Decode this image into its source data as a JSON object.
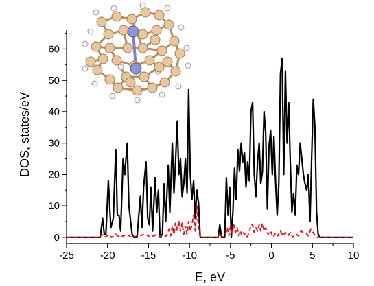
{
  "chart_data": {
    "type": "line",
    "xlabel": "E, eV",
    "ylabel": "DOS, states/eV",
    "xlim": [
      -25,
      10
    ],
    "ylim": [
      -2,
      66
    ],
    "x_ticks": [
      -25,
      -20,
      -15,
      -10,
      -5,
      0,
      5,
      10
    ],
    "y_ticks": [
      0,
      10,
      20,
      30,
      40,
      50,
      60
    ],
    "grid": false,
    "legend": "none",
    "inset": "molecule-ball-and-stick",
    "series": [
      {
        "color": "#000000",
        "style": "solid",
        "points": [
          [
            -25,
            0
          ],
          [
            -20.9,
            0
          ],
          [
            -20.6,
            6
          ],
          [
            -20.4,
            1
          ],
          [
            -20.2,
            1
          ],
          [
            -19.9,
            18
          ],
          [
            -19.6,
            3
          ],
          [
            -19.3,
            6
          ],
          [
            -19.0,
            28
          ],
          [
            -18.8,
            7
          ],
          [
            -18.6,
            7
          ],
          [
            -18.4,
            2
          ],
          [
            -18.1,
            25
          ],
          [
            -17.9,
            20
          ],
          [
            -17.6,
            30
          ],
          [
            -17.4,
            10
          ],
          [
            -17.0,
            1
          ],
          [
            -16.8,
            0
          ],
          [
            -16.4,
            0
          ],
          [
            -16.0,
            13
          ],
          [
            -15.8,
            3
          ],
          [
            -15.6,
            16
          ],
          [
            -15.3,
            24
          ],
          [
            -15.1,
            6
          ],
          [
            -14.9,
            4
          ],
          [
            -14.7,
            16
          ],
          [
            -14.5,
            2
          ],
          [
            -14.2,
            19
          ],
          [
            -14.0,
            8
          ],
          [
            -13.8,
            15
          ],
          [
            -13.6,
            0
          ],
          [
            -13.3,
            1
          ],
          [
            -13.1,
            17
          ],
          [
            -12.9,
            5
          ],
          [
            -12.6,
            23
          ],
          [
            -12.4,
            8
          ],
          [
            -12.1,
            30
          ],
          [
            -11.9,
            14
          ],
          [
            -11.7,
            24
          ],
          [
            -11.5,
            37
          ],
          [
            -11.3,
            20
          ],
          [
            -11.1,
            25
          ],
          [
            -10.9,
            13
          ],
          [
            -10.7,
            17
          ],
          [
            -10.5,
            25
          ],
          [
            -10.3,
            14
          ],
          [
            -10.1,
            47
          ],
          [
            -9.9,
            20
          ],
          [
            -9.7,
            12
          ],
          [
            -9.5,
            18
          ],
          [
            -9.3,
            6
          ],
          [
            -9.1,
            15
          ],
          [
            -8.9,
            11
          ],
          [
            -8.7,
            0
          ],
          [
            -6.5,
            0
          ],
          [
            -6.3,
            4
          ],
          [
            -6.1,
            0
          ],
          [
            -5.7,
            0
          ],
          [
            -5.5,
            19
          ],
          [
            -5.3,
            7
          ],
          [
            -5.1,
            16
          ],
          [
            -4.9,
            0
          ],
          [
            -4.7,
            8
          ],
          [
            -4.5,
            22
          ],
          [
            -4.3,
            12
          ],
          [
            -4.1,
            28
          ],
          [
            -3.9,
            21
          ],
          [
            -3.7,
            30
          ],
          [
            -3.5,
            24
          ],
          [
            -3.3,
            27
          ],
          [
            -3.1,
            16
          ],
          [
            -2.9,
            24
          ],
          [
            -2.7,
            18
          ],
          [
            -2.5,
            40
          ],
          [
            -2.3,
            43
          ],
          [
            -2.1,
            20
          ],
          [
            -1.9,
            13
          ],
          [
            -1.7,
            24
          ],
          [
            -1.5,
            30
          ],
          [
            -1.3,
            17
          ],
          [
            -1.1,
            21
          ],
          [
            -0.9,
            40
          ],
          [
            -0.7,
            33
          ],
          [
            -0.5,
            9
          ],
          [
            -0.3,
            29
          ],
          [
            -0.1,
            34
          ],
          [
            0.1,
            20
          ],
          [
            0.3,
            32
          ],
          [
            0.5,
            18
          ],
          [
            0.7,
            7
          ],
          [
            0.9,
            17
          ],
          [
            1.1,
            52
          ],
          [
            1.3,
            57
          ],
          [
            1.5,
            20
          ],
          [
            1.7,
            53
          ],
          [
            1.9,
            30
          ],
          [
            2.1,
            43
          ],
          [
            2.3,
            24
          ],
          [
            2.5,
            8
          ],
          [
            2.7,
            14
          ],
          [
            2.9,
            7
          ],
          [
            3.1,
            23
          ],
          [
            3.3,
            20
          ],
          [
            3.5,
            30
          ],
          [
            3.7,
            25
          ],
          [
            3.9,
            20
          ],
          [
            4.1,
            17
          ],
          [
            4.3,
            15
          ],
          [
            4.5,
            20
          ],
          [
            4.7,
            5
          ],
          [
            4.9,
            25
          ],
          [
            5.1,
            44
          ],
          [
            5.3,
            35
          ],
          [
            5.5,
            8
          ],
          [
            5.7,
            1
          ],
          [
            5.9,
            0
          ],
          [
            10,
            0
          ]
        ]
      },
      {
        "color": "#e8121c",
        "style": "dashed",
        "points": [
          [
            -25,
            0
          ],
          [
            -21.0,
            0
          ],
          [
            -20.7,
            1
          ],
          [
            -20.4,
            0
          ],
          [
            -19.8,
            0.8
          ],
          [
            -19.5,
            0
          ],
          [
            -19.0,
            1
          ],
          [
            -18.5,
            0
          ],
          [
            -17.6,
            1
          ],
          [
            -17.1,
            0
          ],
          [
            -15.3,
            1
          ],
          [
            -14.8,
            0
          ],
          [
            -13.9,
            1
          ],
          [
            -13.4,
            0
          ],
          [
            -12.8,
            0.5
          ],
          [
            -12.5,
            2.5
          ],
          [
            -12.3,
            0.5
          ],
          [
            -12.1,
            3.5
          ],
          [
            -11.9,
            1
          ],
          [
            -11.7,
            4.5
          ],
          [
            -11.5,
            2
          ],
          [
            -11.3,
            5
          ],
          [
            -11.1,
            2
          ],
          [
            -10.9,
            4.5
          ],
          [
            -10.7,
            1
          ],
          [
            -10.5,
            3.5
          ],
          [
            -10.3,
            1
          ],
          [
            -10.1,
            5
          ],
          [
            -9.9,
            2
          ],
          [
            -9.7,
            4
          ],
          [
            -9.5,
            7
          ],
          [
            -9.3,
            2
          ],
          [
            -9.1,
            10
          ],
          [
            -8.9,
            3
          ],
          [
            -8.7,
            0
          ],
          [
            -6.6,
            0
          ],
          [
            -6.3,
            1
          ],
          [
            -6.0,
            0
          ],
          [
            -5.6,
            1
          ],
          [
            -5.4,
            3
          ],
          [
            -5.2,
            0.5
          ],
          [
            -5.0,
            3.5
          ],
          [
            -4.8,
            1
          ],
          [
            -4.6,
            4
          ],
          [
            -4.4,
            1.5
          ],
          [
            -4.2,
            3
          ],
          [
            -4.0,
            0.5
          ],
          [
            -3.8,
            2
          ],
          [
            -3.6,
            0.5
          ],
          [
            -3.4,
            1.5
          ],
          [
            -3.0,
            0
          ],
          [
            -2.7,
            1.5
          ],
          [
            -2.5,
            4
          ],
          [
            -2.3,
            4
          ],
          [
            -2.1,
            1.5
          ],
          [
            -1.9,
            3
          ],
          [
            -1.7,
            2
          ],
          [
            -1.5,
            4
          ],
          [
            -1.3,
            2
          ],
          [
            -1.1,
            4.5
          ],
          [
            -0.9,
            2
          ],
          [
            -0.7,
            3
          ],
          [
            -0.4,
            1
          ],
          [
            -0.1,
            2
          ],
          [
            0.2,
            0
          ],
          [
            0.5,
            1.5
          ],
          [
            0.8,
            0.5
          ],
          [
            1.1,
            2
          ],
          [
            1.4,
            0.5
          ],
          [
            1.7,
            1.5
          ],
          [
            2.0,
            0.5
          ],
          [
            2.3,
            1.5
          ],
          [
            2.6,
            0
          ],
          [
            3.0,
            1
          ],
          [
            3.3,
            0.5
          ],
          [
            3.6,
            2
          ],
          [
            3.9,
            1.5
          ],
          [
            4.2,
            1.5
          ],
          [
            4.5,
            0.5
          ],
          [
            4.8,
            2.5
          ],
          [
            5.0,
            2
          ],
          [
            5.2,
            1
          ],
          [
            5.5,
            0
          ],
          [
            6.0,
            0
          ],
          [
            10,
            0
          ]
        ]
      }
    ]
  }
}
